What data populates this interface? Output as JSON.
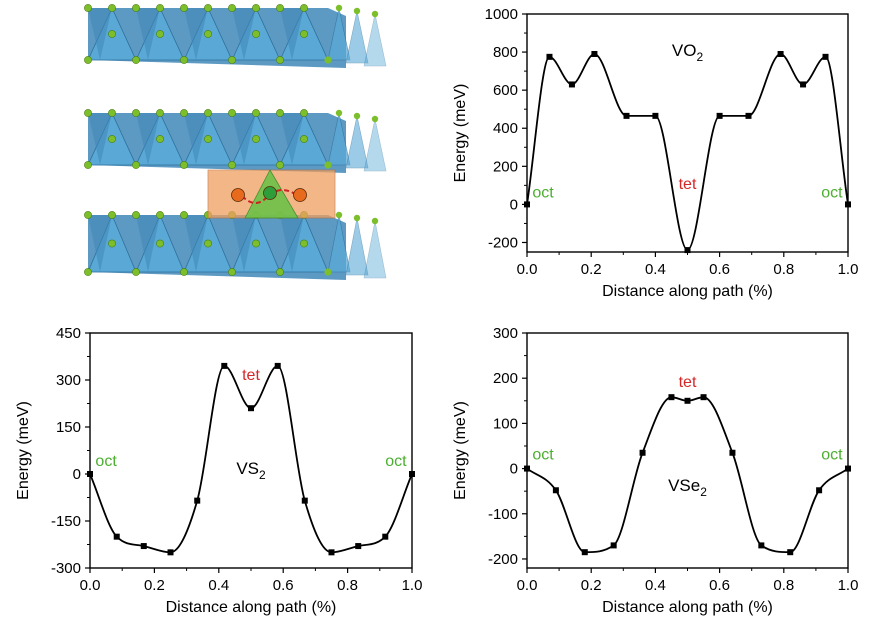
{
  "figure": {
    "structure_panel": {
      "description_name": "crystal-structure-illustration",
      "colors": {
        "octahedra": "#5aa9d6",
        "octahedra_dark": "#3f87b8",
        "atoms": "#7cbf2a",
        "migrating_ion_oct": "#e86a1c",
        "migrating_ion_tet": "#2e9e3a",
        "tet_site": "#6cc24a",
        "oct_site": "#f0a060",
        "arrow": "#cc2222"
      }
    }
  },
  "chart_data": [
    {
      "id": "vo2",
      "type": "line",
      "series_label": "VO",
      "series_sub": "2",
      "xlabel": "Distance along path (%)",
      "ylabel": "Energy (meV)",
      "xlim": [
        0.0,
        1.0
      ],
      "ylim": [
        -250,
        1000
      ],
      "xticks": [
        0.0,
        0.2,
        0.4,
        0.6,
        0.8,
        1.0
      ],
      "xtick_labels": [
        "0.0",
        "0.2",
        "0.4",
        "0.6",
        "0.8",
        "1.0"
      ],
      "yticks": [
        -200,
        0,
        200,
        400,
        600,
        800,
        1000
      ],
      "ytick_labels": [
        "-200",
        "0",
        "200",
        "400",
        "600",
        "800",
        "1000"
      ],
      "points": [
        {
          "x": 0.0,
          "y": 0
        },
        {
          "x": 0.07,
          "y": 775
        },
        {
          "x": 0.14,
          "y": 630
        },
        {
          "x": 0.21,
          "y": 790
        },
        {
          "x": 0.31,
          "y": 465
        },
        {
          "x": 0.4,
          "y": 465
        },
        {
          "x": 0.5,
          "y": -240
        },
        {
          "x": 0.6,
          "y": 465
        },
        {
          "x": 0.69,
          "y": 465
        },
        {
          "x": 0.79,
          "y": 790
        },
        {
          "x": 0.86,
          "y": 630
        },
        {
          "x": 0.93,
          "y": 775
        },
        {
          "x": 1.0,
          "y": 0
        }
      ],
      "annotations": [
        {
          "text": "oct",
          "x": 0.05,
          "y": 35,
          "color": "#4caf30"
        },
        {
          "text": "tet",
          "x": 0.5,
          "y": 80,
          "color": "#d62728"
        },
        {
          "text": "oct",
          "x": 0.95,
          "y": 35,
          "color": "#4caf30"
        }
      ],
      "label_pos": {
        "x": 0.5,
        "y": 780
      }
    },
    {
      "id": "vs2",
      "type": "line",
      "series_label": "VS",
      "series_sub": "2",
      "xlabel": "Distance along path (%)",
      "ylabel": "Energy (meV)",
      "xlim": [
        0.0,
        1.0
      ],
      "ylim": [
        -300,
        450
      ],
      "xticks": [
        0.0,
        0.2,
        0.4,
        0.6,
        0.8,
        1.0
      ],
      "xtick_labels": [
        "0.0",
        "0.2",
        "0.4",
        "0.6",
        "0.8",
        "1.0"
      ],
      "yticks": [
        -300,
        -150,
        0,
        150,
        300,
        450
      ],
      "ytick_labels": [
        "-300",
        "-150",
        "0",
        "150",
        "300",
        "450"
      ],
      "points": [
        {
          "x": 0.0,
          "y": 0
        },
        {
          "x": 0.083,
          "y": -200
        },
        {
          "x": 0.167,
          "y": -230
        },
        {
          "x": 0.25,
          "y": -250
        },
        {
          "x": 0.333,
          "y": -85
        },
        {
          "x": 0.417,
          "y": 345
        },
        {
          "x": 0.5,
          "y": 210
        },
        {
          "x": 0.583,
          "y": 345
        },
        {
          "x": 0.667,
          "y": -85
        },
        {
          "x": 0.75,
          "y": -250
        },
        {
          "x": 0.833,
          "y": -230
        },
        {
          "x": 0.917,
          "y": -200
        },
        {
          "x": 1.0,
          "y": 0
        }
      ],
      "annotations": [
        {
          "text": "oct",
          "x": 0.05,
          "y": 25,
          "color": "#4caf30"
        },
        {
          "text": "tet",
          "x": 0.5,
          "y": 300,
          "color": "#d62728"
        },
        {
          "text": "oct",
          "x": 0.95,
          "y": 25,
          "color": "#4caf30"
        }
      ],
      "label_pos": {
        "x": 0.5,
        "y": 0
      }
    },
    {
      "id": "vse2",
      "type": "line",
      "series_label": "VSe",
      "series_sub": "2",
      "xlabel": "Distance along path (%)",
      "ylabel": "Energy (meV)",
      "xlim": [
        0.0,
        1.0
      ],
      "ylim": [
        -220,
        300
      ],
      "xticks": [
        0.0,
        0.2,
        0.4,
        0.6,
        0.8,
        1.0
      ],
      "xtick_labels": [
        "0.0",
        "0.2",
        "0.4",
        "0.6",
        "0.8",
        "1.0"
      ],
      "yticks": [
        -200,
        -100,
        0,
        100,
        200,
        300
      ],
      "ytick_labels": [
        "-200",
        "-100",
        "0",
        "100",
        "200",
        "300"
      ],
      "points": [
        {
          "x": 0.0,
          "y": 0
        },
        {
          "x": 0.09,
          "y": -48
        },
        {
          "x": 0.18,
          "y": -185
        },
        {
          "x": 0.27,
          "y": -170
        },
        {
          "x": 0.36,
          "y": 35
        },
        {
          "x": 0.45,
          "y": 158
        },
        {
          "x": 0.5,
          "y": 150
        },
        {
          "x": 0.55,
          "y": 158
        },
        {
          "x": 0.64,
          "y": 35
        },
        {
          "x": 0.73,
          "y": -170
        },
        {
          "x": 0.82,
          "y": -185
        },
        {
          "x": 0.91,
          "y": -48
        },
        {
          "x": 1.0,
          "y": 0
        }
      ],
      "annotations": [
        {
          "text": "oct",
          "x": 0.05,
          "y": 20,
          "color": "#4caf30"
        },
        {
          "text": "tet",
          "x": 0.5,
          "y": 180,
          "color": "#d62728"
        },
        {
          "text": "oct",
          "x": 0.95,
          "y": 20,
          "color": "#4caf30"
        }
      ],
      "label_pos": {
        "x": 0.5,
        "y": -50
      }
    }
  ]
}
